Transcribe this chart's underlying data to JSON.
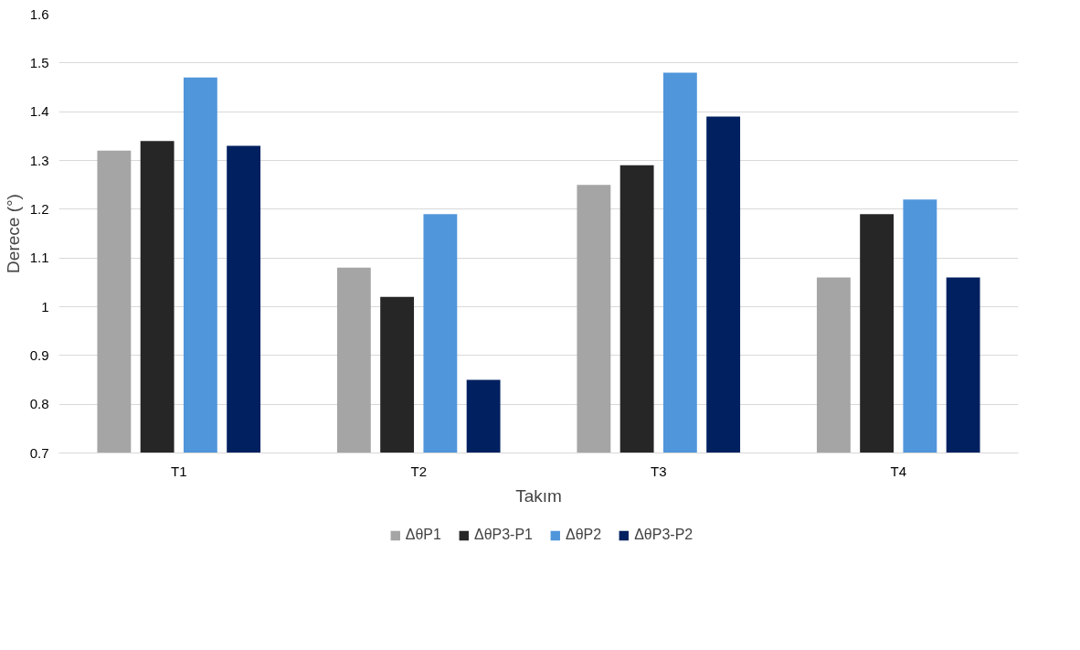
{
  "chart_data": {
    "type": "bar",
    "xlabel": "Takım",
    "ylabel": "Derece (°)",
    "categories": [
      "T1",
      "T2",
      "T3",
      "T4"
    ],
    "series": [
      {
        "name": "ΔθP1",
        "color": "#a5a5a5",
        "values": [
          1.32,
          1.08,
          1.25,
          1.06
        ]
      },
      {
        "name": "ΔθP3-P1",
        "color": "#262626",
        "values": [
          1.34,
          1.02,
          1.29,
          1.19
        ]
      },
      {
        "name": "ΔθP2",
        "color": "#5096db",
        "values": [
          1.47,
          1.19,
          1.48,
          1.22
        ]
      },
      {
        "name": "ΔθP3-P2",
        "color": "#002060",
        "values": [
          1.33,
          0.85,
          1.39,
          1.06
        ]
      }
    ],
    "ylim": [
      0.7,
      1.6
    ],
    "yticks": [
      0.7,
      0.8,
      0.9,
      {
        "value": 1.0,
        "label": "1"
      },
      1.1,
      1.2,
      1.3,
      1.4,
      1.5,
      1.6
    ],
    "grid": "y",
    "legend": "bottom"
  }
}
